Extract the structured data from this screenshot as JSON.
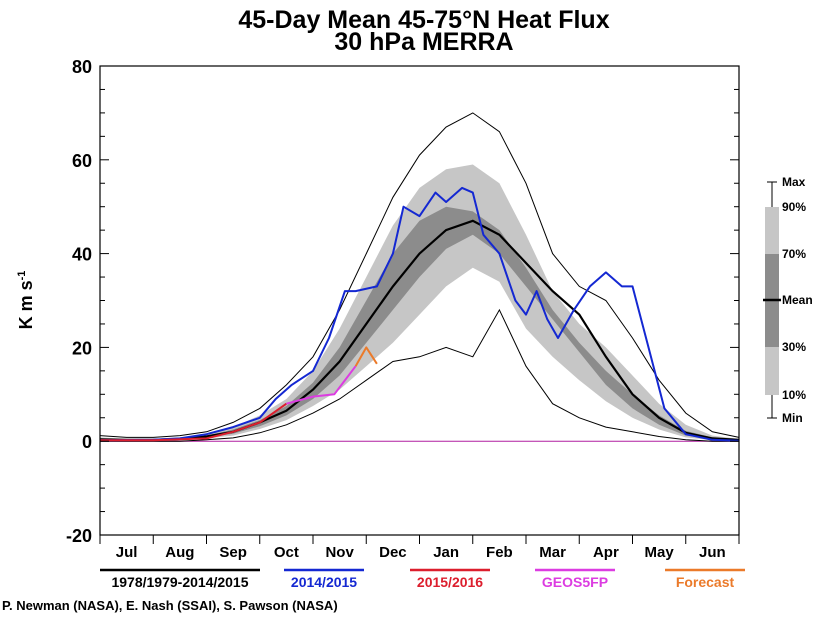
{
  "chart_data": {
    "type": "area",
    "title": "45-Day Mean 45-75°N Heat Flux",
    "subtitle": "30 hPa   MERRA",
    "ylabel_main": "K m s",
    "ylabel_exp": "-1",
    "ylim": [
      -20,
      80
    ],
    "yticks": [
      -20,
      0,
      20,
      40,
      60,
      80
    ],
    "xlim": [
      0,
      12
    ],
    "months": [
      "Jul",
      "Aug",
      "Sep",
      "Oct",
      "Nov",
      "Dec",
      "Jan",
      "Feb",
      "Mar",
      "Apr",
      "May",
      "Jun"
    ],
    "x": [
      0,
      0.5,
      1,
      1.5,
      2,
      2.5,
      3,
      3.5,
      4,
      4.5,
      5,
      5.5,
      6,
      6.5,
      7,
      7.5,
      8,
      8.5,
      9,
      9.5,
      10,
      10.5,
      11,
      11.5,
      12
    ],
    "bands": {
      "max": [
        1.2,
        0.8,
        0.8,
        1.2,
        2,
        4,
        7,
        12,
        18,
        28,
        40,
        52,
        61,
        67,
        70,
        66,
        55,
        40,
        33,
        30,
        22,
        13,
        6,
        2,
        0.8
      ],
      "p90": [
        0.8,
        0.5,
        0.5,
        0.8,
        1.5,
        3,
        5.5,
        9,
        15,
        24,
        35,
        46,
        54,
        58,
        59,
        55,
        44,
        32,
        25,
        20,
        14,
        8,
        3.5,
        1.2,
        0.5
      ],
      "p70": [
        0.5,
        0.4,
        0.4,
        0.6,
        1.2,
        2.5,
        4.5,
        7.5,
        12.5,
        20,
        30,
        40,
        47,
        50,
        49,
        45,
        37,
        28,
        21,
        15,
        10,
        5.5,
        2.2,
        0.8,
        0.3
      ],
      "mean": [
        0.4,
        0.3,
        0.3,
        0.5,
        1,
        2,
        4,
        6.5,
        11,
        17,
        25,
        33,
        40,
        45,
        47,
        44,
        38,
        32,
        27,
        18,
        10,
        5,
        1.8,
        0.6,
        0.3
      ],
      "p30": [
        0.3,
        0.2,
        0.2,
        0.4,
        0.8,
        1.6,
        3.2,
        5.5,
        9,
        14,
        21,
        28,
        35,
        41,
        44,
        40,
        33,
        26,
        19,
        12,
        7,
        3.5,
        1.2,
        0.4,
        0.2
      ],
      "p10": [
        0.2,
        0.1,
        0.1,
        0.3,
        0.6,
        1.2,
        2.6,
        4.5,
        7.5,
        11,
        16,
        21,
        27,
        33,
        37,
        34,
        24,
        18,
        13,
        8.5,
        5,
        2.5,
        0.8,
        0.2,
        0.1
      ],
      "min": [
        0,
        0,
        0,
        0,
        0.3,
        0.7,
        1.8,
        3.5,
        6,
        9,
        13,
        17,
        18,
        20,
        18,
        28,
        16,
        8,
        5,
        3,
        2,
        1,
        0.3,
        0,
        0
      ]
    },
    "series": [
      {
        "name": "2014/2015",
        "x": [
          0,
          1,
          1.5,
          2,
          2.5,
          3,
          3.3,
          3.6,
          4,
          4.3,
          4.6,
          4.8,
          5.2,
          5.5,
          5.7,
          6,
          6.3,
          6.5,
          6.8,
          7,
          7.2,
          7.5,
          7.8,
          8,
          8.2,
          8.4,
          8.6,
          8.9,
          9.2,
          9.5,
          9.8,
          10,
          10.3,
          10.6,
          11,
          11.5,
          12
        ],
        "y": [
          0.2,
          0.3,
          0.6,
          1.5,
          3,
          5,
          9,
          12,
          15,
          22,
          32,
          32,
          33,
          40,
          50,
          48,
          53,
          51,
          54,
          53,
          44,
          40,
          30,
          27,
          32,
          26,
          22,
          28,
          33,
          36,
          33,
          33,
          20,
          7,
          1.5,
          0.3,
          0.1
        ]
      },
      {
        "name": "2015/2016",
        "x": [
          0,
          1,
          2,
          2.5,
          3,
          3.5
        ],
        "y": [
          0.2,
          0.2,
          0.6,
          2,
          4,
          8
        ]
      },
      {
        "name": "GEOS5FP",
        "x": [
          3.5,
          4,
          4.4,
          4.8
        ],
        "y": [
          8,
          9.5,
          10,
          16
        ]
      },
      {
        "name": "Forecast",
        "x": [
          4.8,
          5,
          5.2
        ],
        "y": [
          16,
          20,
          16.5
        ]
      }
    ],
    "band_key": [
      "Max",
      "90%",
      "70%",
      "Mean",
      "30%",
      "10%",
      "Min"
    ],
    "credit": "P. Newman (NASA), E. Nash (SSAI), S. Pawson (NASA)"
  },
  "legend": [
    {
      "label": "1978/1979-2014/2015",
      "color": "#000000"
    },
    {
      "label": "2014/2015",
      "color": "#1428d2"
    },
    {
      "label": "2015/2016",
      "color": "#dc1e2d"
    },
    {
      "label": "GEOS5FP",
      "color": "#dc3ce1"
    },
    {
      "label": "Forecast",
      "color": "#eb7a2a"
    }
  ],
  "colors": {
    "p10_90_band": "#c6c6c6",
    "p30_70_band": "#8c8c8c",
    "zero_line": "#b01ea0",
    "axis": "#000000"
  }
}
